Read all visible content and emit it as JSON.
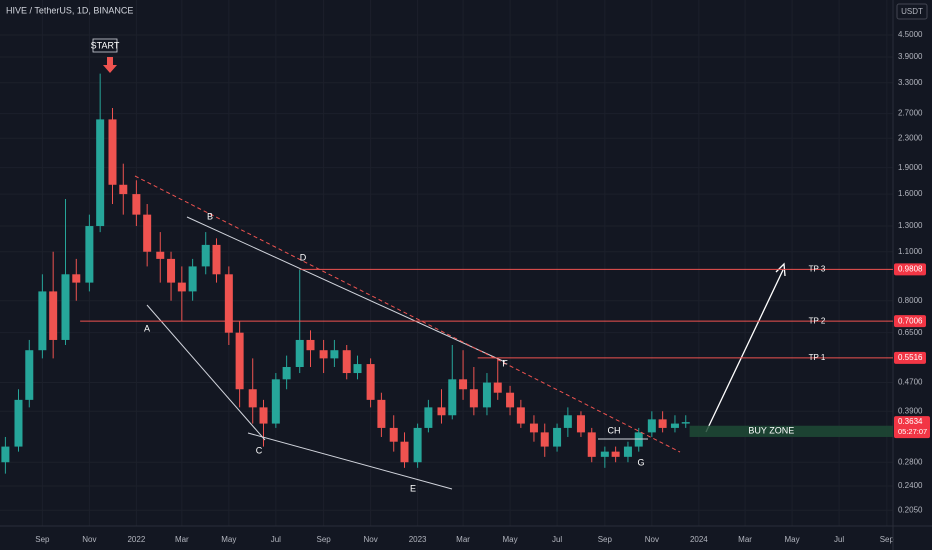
{
  "chart_data": {
    "type": "candlestick",
    "title": "HIVE / TetherUS, 1D, BINANCE",
    "currency": "USDT",
    "log_scale": true,
    "grid": true,
    "up_color": "#26a69a",
    "down_color": "#ef5350",
    "x": [
      "2021-07-15",
      "2021-08-01",
      "2021-08-15",
      "2021-09-01",
      "2021-09-15",
      "2021-10-01",
      "2021-10-15",
      "2021-11-01",
      "2021-11-15",
      "2021-12-01",
      "2021-12-15",
      "2022-01-01",
      "2022-01-15",
      "2022-02-01",
      "2022-02-15",
      "2022-03-01",
      "2022-03-15",
      "2022-04-01",
      "2022-04-15",
      "2022-05-01",
      "2022-05-15",
      "2022-06-01",
      "2022-06-15",
      "2022-07-01",
      "2022-07-15",
      "2022-08-01",
      "2022-08-15",
      "2022-09-01",
      "2022-09-15",
      "2022-10-01",
      "2022-10-15",
      "2022-11-01",
      "2022-11-15",
      "2022-12-01",
      "2022-12-15",
      "2023-01-01",
      "2023-01-15",
      "2023-02-01",
      "2023-02-15",
      "2023-03-01",
      "2023-03-15",
      "2023-04-01",
      "2023-04-15",
      "2023-05-01",
      "2023-05-15",
      "2023-06-01",
      "2023-06-15",
      "2023-07-01",
      "2023-07-15",
      "2023-08-01",
      "2023-08-15",
      "2023-09-01",
      "2023-09-15",
      "2023-10-01",
      "2023-10-15",
      "2023-11-01",
      "2023-11-15",
      "2023-12-01",
      "2023-12-15"
    ],
    "open": [
      0.28,
      0.31,
      0.42,
      0.58,
      0.85,
      0.62,
      0.95,
      0.9,
      1.3,
      2.6,
      1.7,
      1.6,
      1.4,
      1.1,
      1.05,
      0.9,
      0.85,
      1.0,
      1.15,
      0.95,
      0.65,
      0.45,
      0.4,
      0.36,
      0.48,
      0.52,
      0.62,
      0.58,
      0.55,
      0.58,
      0.5,
      0.53,
      0.42,
      0.35,
      0.32,
      0.28,
      0.35,
      0.4,
      0.38,
      0.48,
      0.45,
      0.4,
      0.47,
      0.44,
      0.4,
      0.36,
      0.34,
      0.31,
      0.35,
      0.38,
      0.34,
      0.29,
      0.3,
      0.29,
      0.31,
      0.34,
      0.37,
      0.35,
      0.36
    ],
    "high": [
      0.33,
      0.45,
      0.62,
      0.95,
      1.1,
      1.55,
      1.05,
      1.4,
      3.5,
      2.8,
      1.95,
      1.75,
      1.5,
      1.25,
      1.1,
      1.0,
      1.05,
      1.25,
      1.2,
      1.0,
      0.7,
      0.55,
      0.42,
      0.5,
      0.56,
      0.98,
      0.66,
      0.62,
      0.62,
      0.6,
      0.56,
      0.55,
      0.44,
      0.38,
      0.34,
      0.36,
      0.42,
      0.45,
      0.6,
      0.58,
      0.52,
      0.5,
      0.55,
      0.46,
      0.42,
      0.38,
      0.36,
      0.36,
      0.4,
      0.39,
      0.35,
      0.31,
      0.31,
      0.32,
      0.35,
      0.39,
      0.39,
      0.38,
      0.38
    ],
    "low": [
      0.26,
      0.3,
      0.4,
      0.55,
      0.55,
      0.6,
      0.8,
      0.85,
      1.25,
      1.5,
      1.4,
      1.3,
      1.0,
      0.9,
      0.8,
      0.7,
      0.8,
      0.95,
      0.9,
      0.6,
      0.4,
      0.36,
      0.31,
      0.35,
      0.45,
      0.5,
      0.52,
      0.5,
      0.52,
      0.48,
      0.48,
      0.4,
      0.33,
      0.3,
      0.27,
      0.27,
      0.34,
      0.36,
      0.37,
      0.42,
      0.38,
      0.38,
      0.42,
      0.38,
      0.35,
      0.32,
      0.29,
      0.3,
      0.33,
      0.33,
      0.28,
      0.27,
      0.28,
      0.28,
      0.3,
      0.33,
      0.34,
      0.34,
      0.35
    ],
    "close": [
      0.31,
      0.42,
      0.58,
      0.85,
      0.62,
      0.95,
      0.9,
      1.3,
      2.6,
      1.7,
      1.6,
      1.4,
      1.1,
      1.05,
      0.9,
      0.85,
      1.0,
      1.15,
      0.95,
      0.65,
      0.45,
      0.4,
      0.36,
      0.48,
      0.52,
      0.62,
      0.58,
      0.55,
      0.58,
      0.5,
      0.53,
      0.42,
      0.35,
      0.32,
      0.28,
      0.35,
      0.4,
      0.38,
      0.48,
      0.45,
      0.4,
      0.47,
      0.44,
      0.4,
      0.36,
      0.34,
      0.31,
      0.35,
      0.38,
      0.34,
      0.29,
      0.3,
      0.29,
      0.31,
      0.34,
      0.37,
      0.35,
      0.36,
      0.3634
    ],
    "countdown": "05:27:07",
    "xlim": [
      "2021-07-08",
      "2024-09-09"
    ],
    "xticks": [
      {
        "value": "2021-09-01",
        "label": "Sep"
      },
      {
        "value": "2021-11-01",
        "label": "Nov"
      },
      {
        "value": "2022-01-01",
        "label": "2022"
      },
      {
        "value": "2022-03-01",
        "label": "Mar"
      },
      {
        "value": "2022-05-01",
        "label": "May"
      },
      {
        "value": "2022-07-01",
        "label": "Jul"
      },
      {
        "value": "2022-09-01",
        "label": "Sep"
      },
      {
        "value": "2022-11-01",
        "label": "Nov"
      },
      {
        "value": "2023-01-01",
        "label": "2023"
      },
      {
        "value": "2023-03-01",
        "label": "Mar"
      },
      {
        "value": "2023-05-01",
        "label": "May"
      },
      {
        "value": "2023-07-01",
        "label": "Jul"
      },
      {
        "value": "2023-09-01",
        "label": "Sep"
      },
      {
        "value": "2023-11-01",
        "label": "Nov"
      },
      {
        "value": "2024-01-01",
        "label": "2024"
      },
      {
        "value": "2024-03-01",
        "label": "Mar"
      },
      {
        "value": "2024-05-01",
        "label": "May"
      },
      {
        "value": "2024-07-01",
        "label": "Jul"
      },
      {
        "value": "2024-09-01",
        "label": "Sep"
      }
    ],
    "ylim": [
      0.185,
      5.65
    ],
    "yticks": [
      {
        "value": 4.5,
        "label": "4.5000"
      },
      {
        "value": 3.9,
        "label": "3.9000"
      },
      {
        "value": 3.3,
        "label": "3.3000"
      },
      {
        "value": 2.7,
        "label": "2.7000"
      },
      {
        "value": 2.3,
        "label": "2.3000"
      },
      {
        "value": 1.9,
        "label": "1.9000"
      },
      {
        "value": 1.6,
        "label": "1.6000"
      },
      {
        "value": 1.3,
        "label": "1.3000"
      },
      {
        "value": 1.1,
        "label": "1.1000"
      },
      {
        "value": 0.8,
        "label": "0.8000"
      },
      {
        "value": 0.65,
        "label": "0.6500"
      },
      {
        "value": 0.47,
        "label": "0.4700"
      },
      {
        "value": 0.39,
        "label": "0.3900"
      },
      {
        "value": 0.28,
        "label": "0.2800"
      },
      {
        "value": 0.24,
        "label": "0.2400"
      },
      {
        "value": 0.205,
        "label": "0.2050"
      }
    ],
    "levels": [
      {
        "label": "TP 3",
        "value": 0.9808,
        "start": "2022-08-01"
      },
      {
        "label": "TP 2",
        "value": 0.7006,
        "start": "2021-10-20"
      },
      {
        "label": "TP 1",
        "value": 0.5516,
        "start": "2023-03-20"
      }
    ],
    "zone": {
      "label": "BUY ZONE",
      "low": 0.33,
      "high": 0.355,
      "start": "2023-12-20"
    },
    "annotations": [
      "START",
      "A",
      "B",
      "C",
      "D",
      "E",
      "F",
      "G",
      "CH"
    ]
  }
}
